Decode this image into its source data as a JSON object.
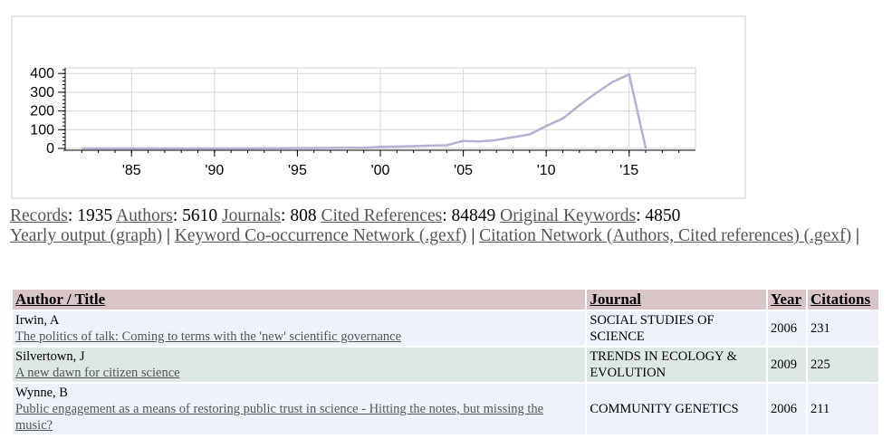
{
  "chart_data": {
    "type": "line",
    "x": [
      1982,
      1983,
      1984,
      1985,
      1986,
      1987,
      1988,
      1989,
      1990,
      1991,
      1992,
      1993,
      1994,
      1995,
      1996,
      1997,
      1998,
      1999,
      2000,
      2001,
      2002,
      2003,
      2004,
      2005,
      2006,
      2007,
      2008,
      2009,
      2010,
      2011,
      2012,
      2013,
      2014,
      2015,
      2016
    ],
    "y": [
      0,
      0,
      0,
      0,
      0,
      0,
      0,
      0,
      0,
      0,
      0,
      1,
      1,
      2,
      2,
      3,
      4,
      3,
      8,
      10,
      12,
      15,
      17,
      40,
      37,
      45,
      60,
      75,
      120,
      160,
      230,
      295,
      355,
      395,
      0
    ],
    "series_color": "#b3b0d1",
    "xlim": [
      1981,
      2019
    ],
    "ylim": [
      0,
      430
    ],
    "yticks": [
      0,
      100,
      200,
      300,
      400
    ],
    "xticks": [
      1985,
      1990,
      1995,
      2000,
      2005,
      2010,
      2015
    ],
    "xtick_labels": [
      "'85",
      "'90",
      "'95",
      "'00",
      "'05",
      "'10",
      "'15"
    ],
    "ytick_labels": [
      "0",
      "100",
      "200",
      "300",
      "400"
    ],
    "grid": true
  },
  "stats": [
    {
      "label": "Records",
      "value": ": 1935"
    },
    {
      "label": "Authors",
      "value": ": 5610"
    },
    {
      "label": "Journals",
      "value": ": 808"
    },
    {
      "label": "Cited References",
      "value": ": 84849"
    },
    {
      "label": "Original Keywords",
      "value": ": 4850"
    }
  ],
  "links": {
    "yearly": "Yearly output (graph)",
    "keyword": "Keyword Co-occurrence Network (.gexf)",
    "citation": "Citation Network (Authors, Cited references) (.gexf)",
    "sep": " | ",
    "trail": " |"
  },
  "table": {
    "headers": {
      "author_title": "Author / Title",
      "journal": "Journal",
      "year": "Year",
      "citations": "Citations"
    },
    "rows": [
      {
        "author": "Irwin, A",
        "title": "The politics of talk: Coming to terms with the 'new' scientific governance",
        "journal": "SOCIAL STUDIES OF SCIENCE",
        "year": "2006",
        "citations": "231"
      },
      {
        "author": "Silvertown, J",
        "title": "A new dawn for citizen science",
        "journal": "TRENDS IN ECOLOGY & EVOLUTION",
        "year": "2009",
        "citations": "225"
      },
      {
        "author": "Wynne, B",
        "title": "Public engagement as a means of restoring public trust in science - Hitting the notes, but missing the music?",
        "journal": "COMMUNITY GENETICS",
        "year": "2006",
        "citations": "211"
      }
    ]
  }
}
